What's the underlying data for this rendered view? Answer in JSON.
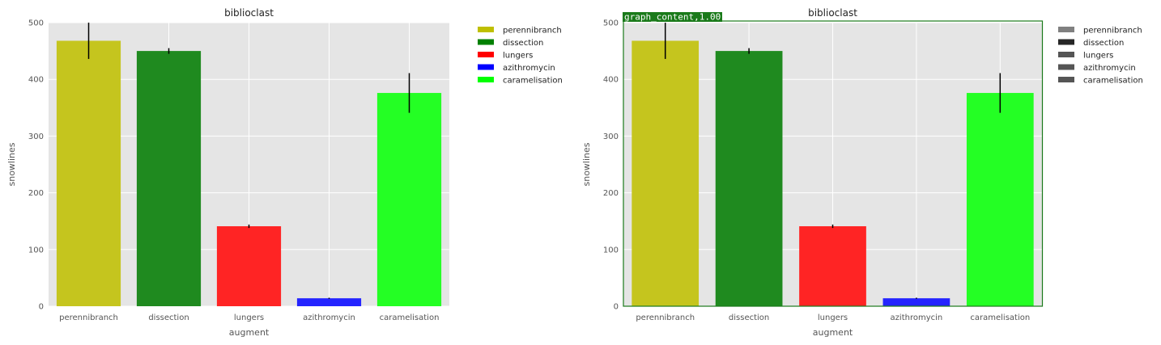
{
  "chart_data": [
    {
      "type": "bar",
      "title": "biblioclast",
      "xlabel": "augment",
      "ylabel": "snowlines",
      "ylim": [
        0,
        500
      ],
      "yticks": [
        0,
        100,
        200,
        300,
        400,
        500
      ],
      "grid": true,
      "legend_position": "outside-top-right",
      "categories": [
        "perennibranch",
        "dissection",
        "lungers",
        "azithromycin",
        "caramelisation"
      ],
      "values": [
        468,
        450,
        141,
        14,
        376
      ],
      "errors": [
        32,
        5,
        3,
        1,
        35
      ],
      "colors": [
        "#c5c51e",
        "#1f8a1f",
        "#ff2424",
        "#2424ff",
        "#24ff24"
      ],
      "legend": [
        {
          "label": "perennibranch",
          "color": "#bfbf00"
        },
        {
          "label": "dissection",
          "color": "#008000"
        },
        {
          "label": "lungers",
          "color": "#ff0000"
        },
        {
          "label": "azithromycin",
          "color": "#0000ff"
        },
        {
          "label": "caramelisation",
          "color": "#00ff00"
        }
      ]
    },
    {
      "type": "bar",
      "title": "biblioclast",
      "xlabel": "augment",
      "ylabel": "snowlines",
      "ylim": [
        0,
        500
      ],
      "yticks": [
        0,
        100,
        200,
        300,
        400,
        500
      ],
      "grid": true,
      "legend_position": "outside-top-right",
      "categories": [
        "perennibranch",
        "dissection",
        "lungers",
        "azithromycin",
        "caramelisation"
      ],
      "values": [
        468,
        450,
        141,
        14,
        376
      ],
      "errors": [
        32,
        5,
        3,
        1,
        35
      ],
      "colors": [
        "#c5c51e",
        "#1f8a1f",
        "#ff2424",
        "#2424ff",
        "#24ff24"
      ],
      "legend": [
        {
          "label": "perennibranch",
          "color": "#808080"
        },
        {
          "label": "dissection",
          "color": "#262626"
        },
        {
          "label": "lungers",
          "color": "#555555"
        },
        {
          "label": "azithromycin",
          "color": "#555555"
        },
        {
          "label": "caramelisation",
          "color": "#555555"
        }
      ],
      "annotation": {
        "label": "graph_content,1.00",
        "color": "#1a7a1a"
      }
    }
  ]
}
